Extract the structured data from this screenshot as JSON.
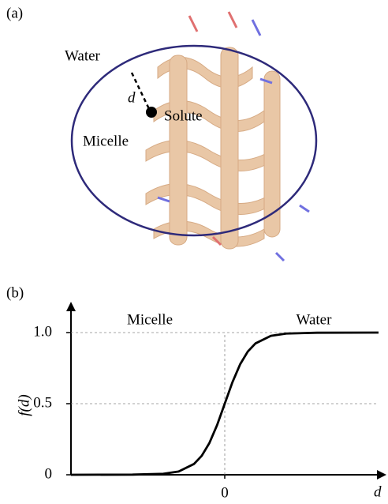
{
  "panel_a": {
    "label": "(a)",
    "texts": {
      "water": "Water",
      "distance": "d",
      "solute": "Solute",
      "micelle": "Micelle"
    }
  },
  "chart_data": {
    "type": "line",
    "panel_label": "(b)",
    "x_label": "d",
    "y_label": "f(d)",
    "annotations": [
      "Micelle",
      "Water"
    ],
    "x": [
      -1,
      -0.6,
      -0.4,
      -0.3,
      -0.2,
      -0.15,
      -0.1,
      -0.05,
      0,
      0.05,
      0.1,
      0.15,
      0.2,
      0.3,
      0.4,
      0.6,
      1
    ],
    "series": [
      {
        "color": "#000000",
        "values": [
          0,
          0.001,
          0.007,
          0.023,
          0.076,
          0.133,
          0.223,
          0.349,
          0.5,
          0.651,
          0.777,
          0.867,
          0.924,
          0.977,
          0.993,
          0.999,
          1
        ]
      }
    ],
    "xlim": [
      -1,
      1
    ],
    "xticks": [
      0
    ],
    "ylim": [
      0,
      1.2
    ],
    "yticks": [
      0,
      0.5,
      {
        "value": 1,
        "label": "1.0"
      }
    ],
    "grid": true
  }
}
